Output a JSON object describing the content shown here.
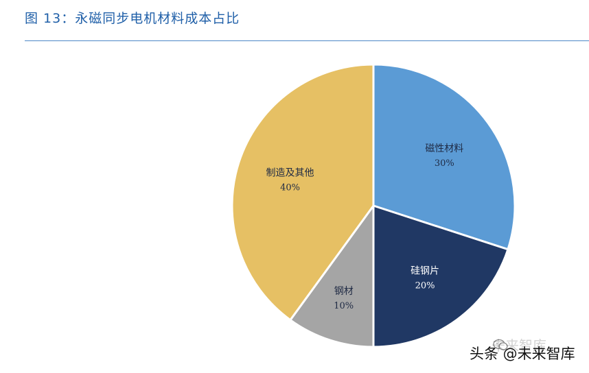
{
  "header": {
    "title": "图 13：永磁同步电机材料成本占比"
  },
  "watermark": {
    "text": "头条 @未来智库",
    "faded_text": "未来智库"
  },
  "colors": {
    "title": "#1f5fa8",
    "rule": "#4d87c6"
  },
  "chart_data": {
    "type": "pie",
    "title": "",
    "start_angle_deg": 0,
    "direction": "clockwise",
    "slices": [
      {
        "label": "磁性材料",
        "value": 30,
        "display": "30%",
        "color": "#5b9bd5",
        "text_color": "#1f2a44"
      },
      {
        "label": "硅钢片",
        "value": 20,
        "display": "20%",
        "color": "#203864",
        "text_color": "#ffffff"
      },
      {
        "label": "钢材",
        "value": 10,
        "display": "10%",
        "color": "#a5a5a5",
        "text_color": "#1f2a44"
      },
      {
        "label": "制造及其他",
        "value": 40,
        "display": "40%",
        "color": "#e6c064",
        "text_color": "#1f2a44"
      }
    ]
  }
}
